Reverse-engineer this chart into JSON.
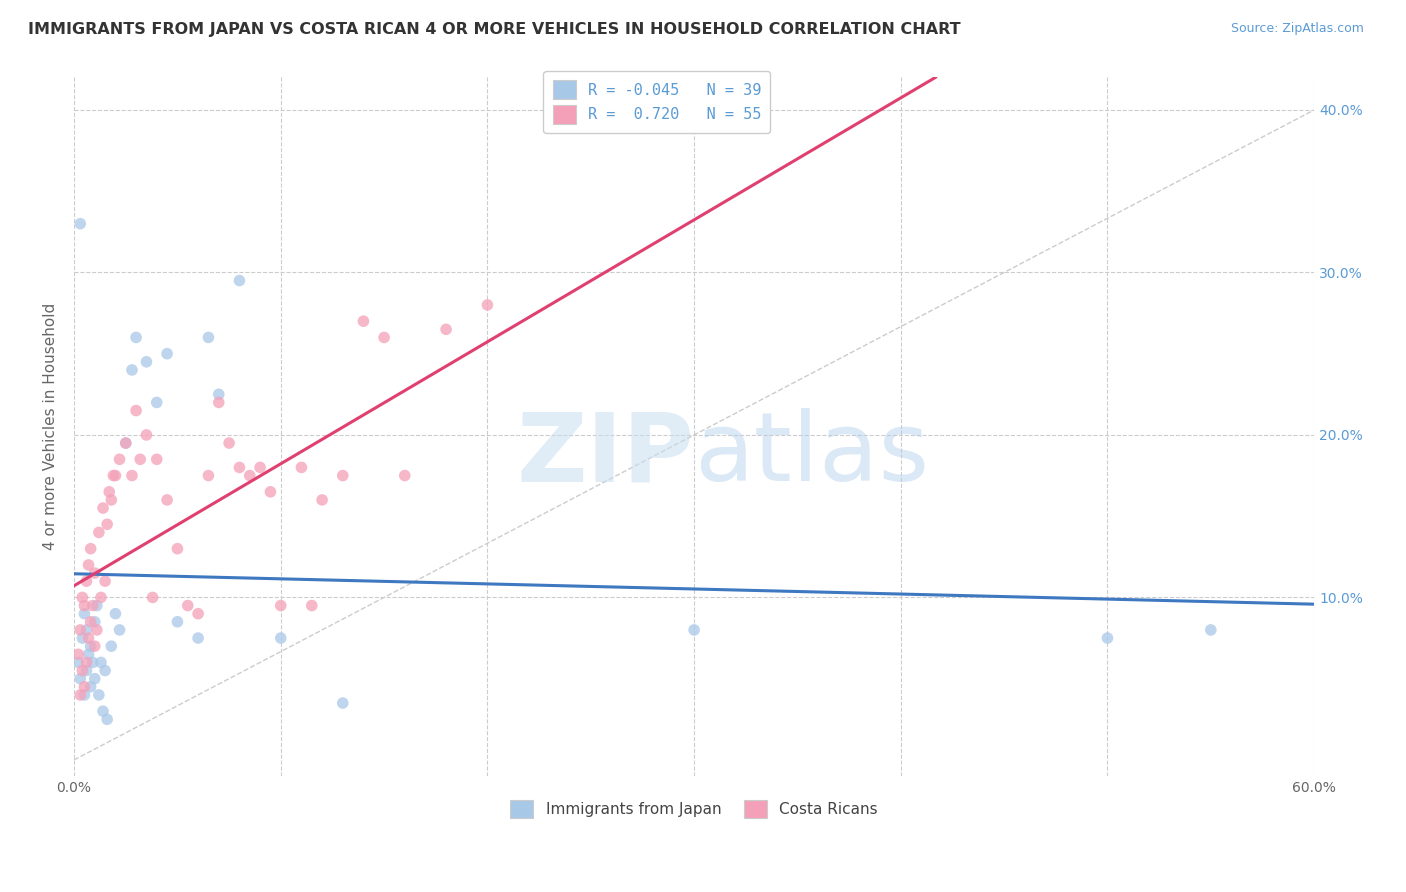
{
  "title": "IMMIGRANTS FROM JAPAN VS COSTA RICAN 4 OR MORE VEHICLES IN HOUSEHOLD CORRELATION CHART",
  "source": "Source: ZipAtlas.com",
  "ylabel": "4 or more Vehicles in Household",
  "xlim": [
    0.0,
    0.6
  ],
  "ylim": [
    -0.01,
    0.42
  ],
  "yticks": [
    0.1,
    0.2,
    0.3,
    0.4
  ],
  "ytick_labels": [
    "10.0%",
    "20.0%",
    "30.0%",
    "40.0%"
  ],
  "japan_R": -0.045,
  "japan_N": 39,
  "costarican_R": 0.72,
  "costarican_N": 55,
  "japan_color": "#a8c8e8",
  "costarican_color": "#f4a0b8",
  "japan_line_color": "#3d78c0",
  "costarican_line_color": "#e04070",
  "diagonal_line_color": "#cccccc",
  "japan_x": [
    0.002,
    0.003,
    0.004,
    0.005,
    0.005,
    0.006,
    0.006,
    0.007,
    0.008,
    0.008,
    0.009,
    0.01,
    0.01,
    0.011,
    0.012,
    0.013,
    0.014,
    0.015,
    0.016,
    0.018,
    0.02,
    0.022,
    0.025,
    0.028,
    0.03,
    0.035,
    0.04,
    0.045,
    0.05,
    0.06,
    0.065,
    0.07,
    0.08,
    0.1,
    0.13,
    0.3,
    0.5,
    0.55,
    0.003
  ],
  "japan_y": [
    0.06,
    0.05,
    0.075,
    0.04,
    0.09,
    0.055,
    0.08,
    0.065,
    0.045,
    0.07,
    0.06,
    0.085,
    0.05,
    0.095,
    0.04,
    0.06,
    0.03,
    0.055,
    0.025,
    0.07,
    0.09,
    0.08,
    0.195,
    0.24,
    0.26,
    0.245,
    0.22,
    0.25,
    0.085,
    0.075,
    0.26,
    0.225,
    0.295,
    0.075,
    0.035,
    0.08,
    0.075,
    0.08,
    0.33
  ],
  "costarican_x": [
    0.002,
    0.003,
    0.003,
    0.004,
    0.004,
    0.005,
    0.005,
    0.006,
    0.006,
    0.007,
    0.007,
    0.008,
    0.008,
    0.009,
    0.01,
    0.01,
    0.011,
    0.012,
    0.013,
    0.014,
    0.015,
    0.016,
    0.018,
    0.02,
    0.022,
    0.025,
    0.028,
    0.03,
    0.035,
    0.04,
    0.045,
    0.05,
    0.055,
    0.06,
    0.065,
    0.07,
    0.075,
    0.08,
    0.085,
    0.09,
    0.095,
    0.1,
    0.11,
    0.12,
    0.13,
    0.14,
    0.15,
    0.16,
    0.18,
    0.2,
    0.017,
    0.019,
    0.032,
    0.038,
    0.115
  ],
  "costarican_y": [
    0.065,
    0.04,
    0.08,
    0.055,
    0.1,
    0.045,
    0.095,
    0.06,
    0.11,
    0.075,
    0.12,
    0.085,
    0.13,
    0.095,
    0.07,
    0.115,
    0.08,
    0.14,
    0.1,
    0.155,
    0.11,
    0.145,
    0.16,
    0.175,
    0.185,
    0.195,
    0.175,
    0.215,
    0.2,
    0.185,
    0.16,
    0.13,
    0.095,
    0.09,
    0.175,
    0.22,
    0.195,
    0.18,
    0.175,
    0.18,
    0.165,
    0.095,
    0.18,
    0.16,
    0.175,
    0.27,
    0.26,
    0.175,
    0.265,
    0.28,
    0.165,
    0.175,
    0.185,
    0.1,
    0.095
  ],
  "watermark_zip": "ZIP",
  "watermark_atlas": "atlas",
  "legend_japan_label": "Immigrants from Japan",
  "legend_costarican_label": "Costa Ricans"
}
